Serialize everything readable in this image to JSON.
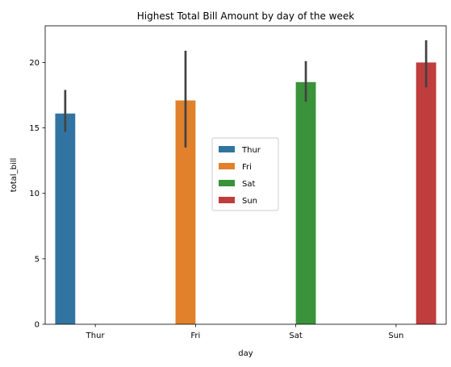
{
  "chart_data": {
    "type": "bar",
    "title": "Highest Total Bill Amount by day of the week",
    "xlabel": "day",
    "ylabel": "total_bill",
    "categories": [
      "Thur",
      "Fri",
      "Sat",
      "Sun"
    ],
    "ylim": [
      0,
      22.8
    ],
    "yticks": [
      0,
      5,
      10,
      15,
      20
    ],
    "grid": false,
    "legend_position": "center",
    "series": [
      {
        "name": "Thur",
        "color": "#3274a1",
        "values": [
          16.1,
          null,
          null,
          null
        ],
        "ci_low": [
          14.7,
          null,
          null,
          null
        ],
        "ci_high": [
          17.9,
          null,
          null,
          null
        ]
      },
      {
        "name": "Fri",
        "color": "#e1812c",
        "values": [
          null,
          17.1,
          null,
          null
        ],
        "ci_low": [
          null,
          13.5,
          null,
          null
        ],
        "ci_high": [
          null,
          20.9,
          null,
          null
        ]
      },
      {
        "name": "Sat",
        "color": "#3a923a",
        "values": [
          null,
          null,
          18.5,
          null
        ],
        "ci_low": [
          null,
          null,
          17.0,
          null
        ],
        "ci_high": [
          null,
          null,
          20.1,
          null
        ]
      },
      {
        "name": "Sun",
        "color": "#c03d3e",
        "values": [
          null,
          null,
          null,
          20.0
        ],
        "ci_low": [
          null,
          null,
          null,
          18.1
        ],
        "ci_high": [
          null,
          null,
          null,
          21.7
        ]
      }
    ]
  }
}
